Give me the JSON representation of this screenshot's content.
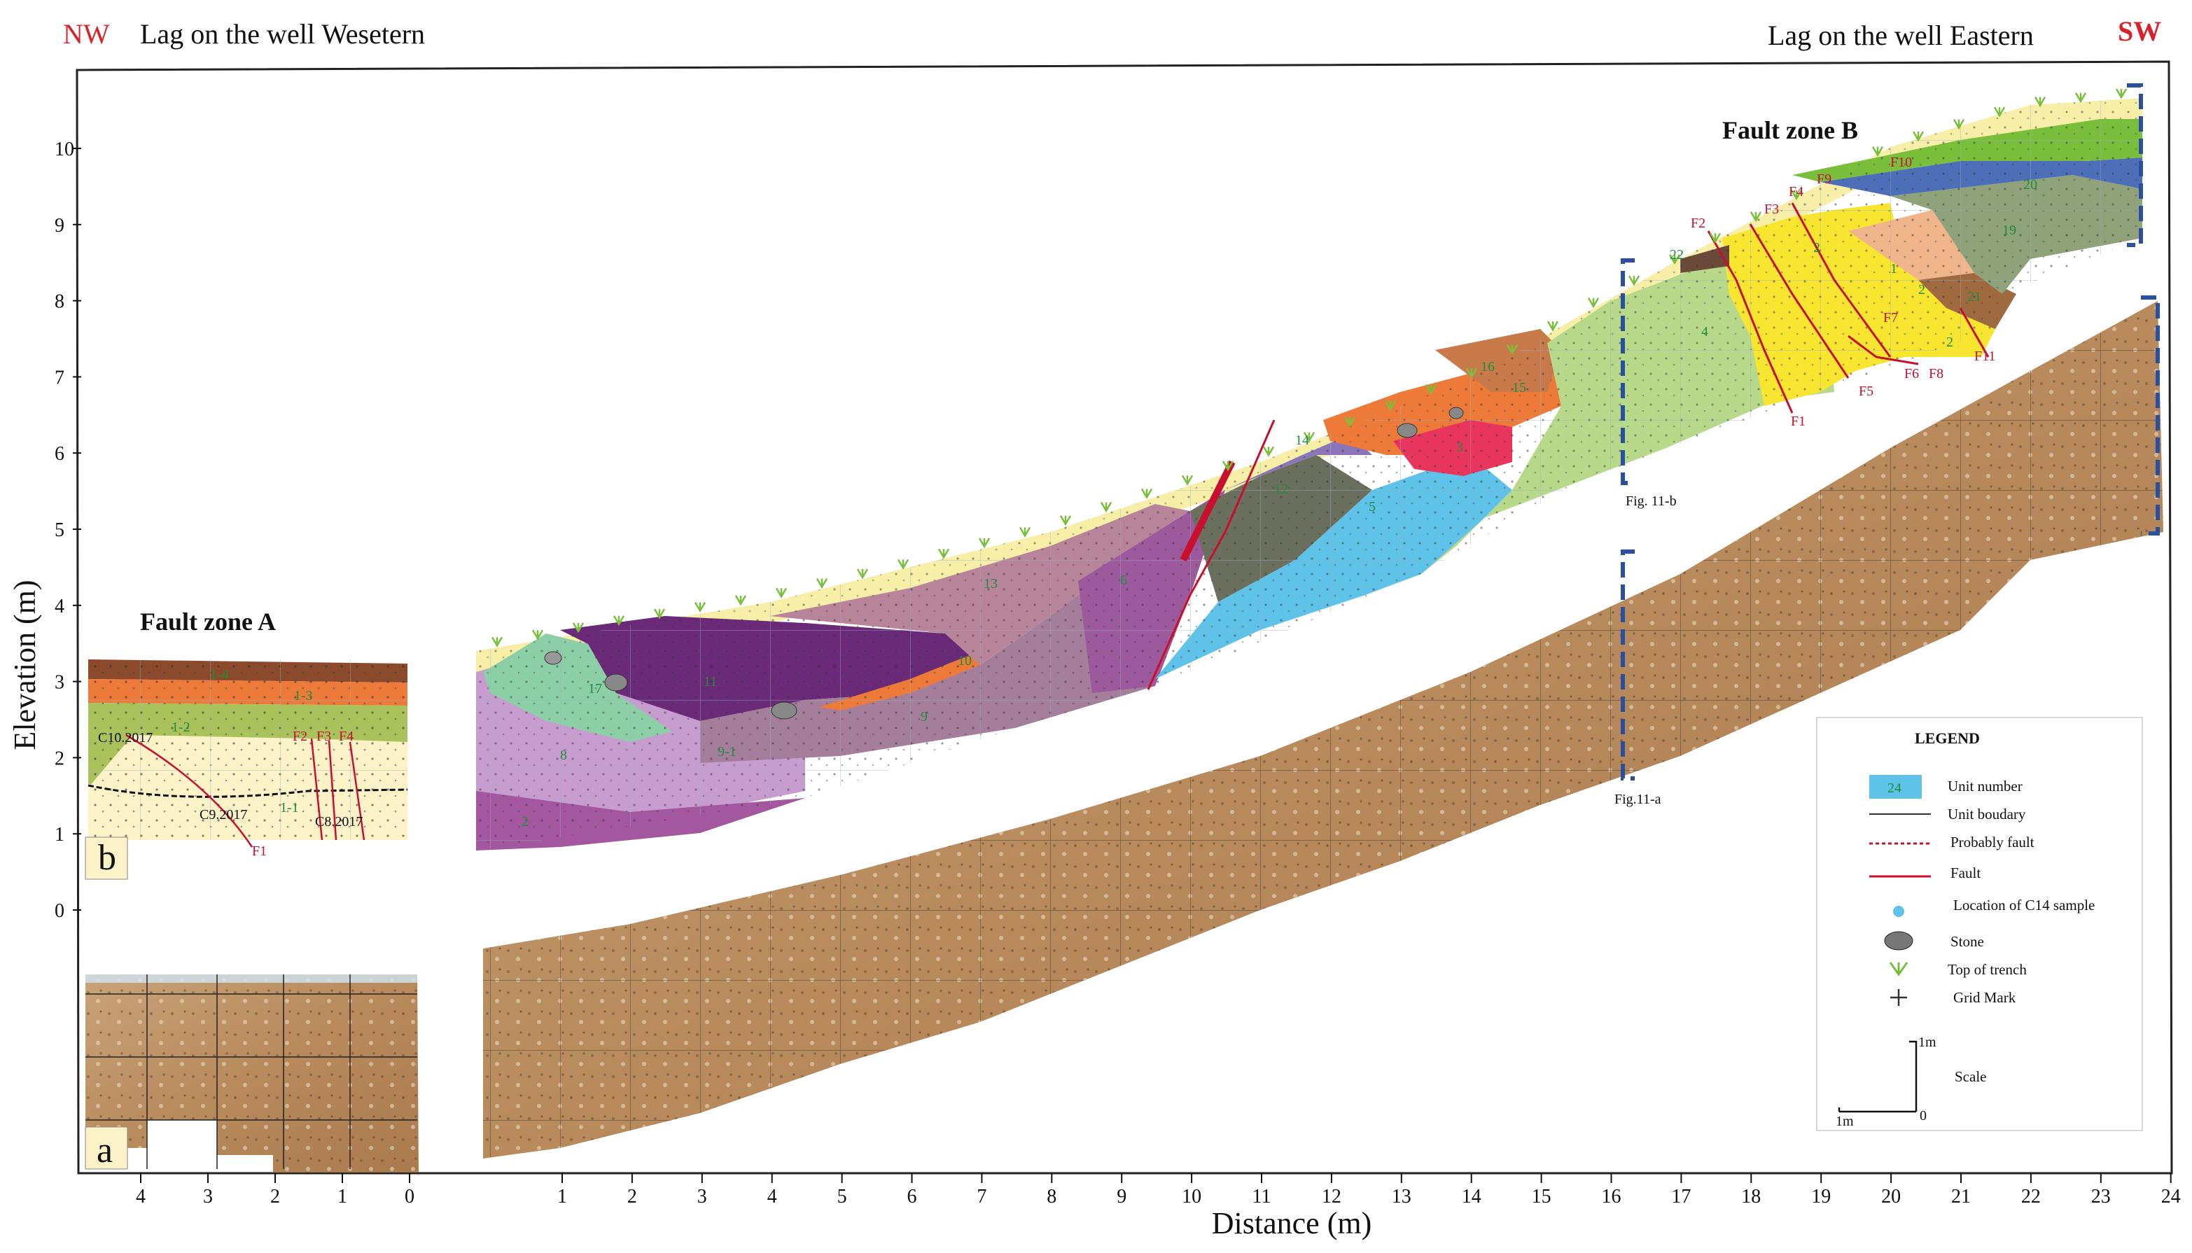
{
  "header": {
    "left_dir": "NW",
    "left_text": "Lag on the well Wesetern",
    "right_text": "Lag on the well Eastern",
    "right_dir": "SW"
  },
  "fault_zone_a": "Fault zone A",
  "fault_zone_b": "Fault zone B",
  "y_axis_label": "Elevation (m)",
  "x_axis_label": "Distance (m)",
  "y_ticks": [
    "10",
    "9",
    "8",
    "7",
    "6",
    "5",
    "4",
    "3",
    "2",
    "1",
    "0"
  ],
  "x_ticks_left": [
    "4",
    "3",
    "2",
    "1",
    "0"
  ],
  "x_ticks_main": [
    "1",
    "2",
    "3",
    "4",
    "5",
    "6",
    "7",
    "8",
    "9",
    "10",
    "11",
    "12",
    "13",
    "14",
    "15",
    "16",
    "17",
    "18",
    "19",
    "20",
    "21",
    "22",
    "23",
    "24"
  ],
  "panel_b_letter": "b",
  "panel_a_letter": "a",
  "fig_labels": {
    "fig11b": "Fig. 11-b",
    "fig11a": "Fig.11-a"
  },
  "zone_a_units": [
    "1-4",
    "1-3",
    "1-2",
    "1-1"
  ],
  "zone_a_samples": [
    "C10.2017",
    "C9.2017",
    "C8.2017"
  ],
  "zone_a_faults": [
    "F1",
    "F2",
    "F3",
    "F4"
  ],
  "main_units": [
    "2",
    "8",
    "17",
    "9-1",
    "11",
    "9",
    "10",
    "13",
    "6",
    "12",
    "14",
    "5",
    "3",
    "15",
    "16",
    "4",
    "22",
    "1",
    "2",
    "2",
    "2",
    "19",
    "20",
    "21"
  ],
  "faults_b": [
    "F1",
    "F2",
    "F3",
    "F4",
    "F5",
    "F6",
    "F7",
    "F8",
    "F9",
    "F10",
    "F11"
  ],
  "legend": {
    "title": "LEGEND",
    "unit_swatch": "24",
    "items": [
      "Unit number",
      "Unit boudary",
      "Probably fault",
      "Fault",
      "Location of C14 sample",
      "Stone",
      "Top of trench",
      "Grid Mark"
    ],
    "scale_label": "Scale",
    "scale_v": "1m",
    "scale_h": "1m",
    "scale_origin": "0"
  },
  "colors": {
    "title_red": "#d9232a",
    "fault_red": "#c8102e",
    "unit_green": "#1d8f3a",
    "bracket_blue": "#2a4f9e"
  }
}
